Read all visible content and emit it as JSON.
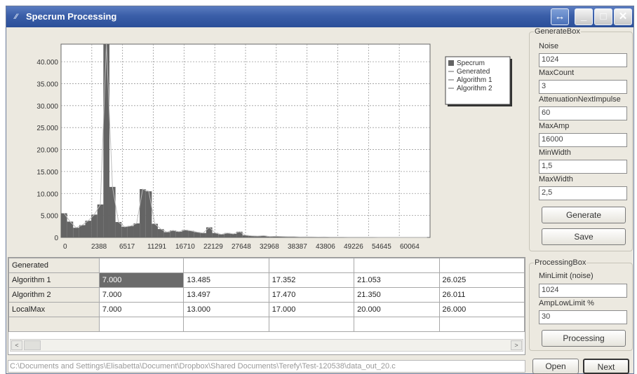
{
  "window": {
    "title": "Specrum Processing",
    "app_icon": "app-icon"
  },
  "title_buttons": [
    {
      "icon": "restore-arrows-icon",
      "glyph": "↔"
    },
    {
      "icon": "minimize-icon",
      "glyph": "_"
    },
    {
      "icon": "maximize-icon",
      "glyph": "□"
    },
    {
      "icon": "close-icon",
      "glyph": "✕"
    }
  ],
  "chart_data": {
    "type": "bar",
    "x_tick_labels": [
      "0",
      "2388",
      "6517",
      "11291",
      "16710",
      "22129",
      "27648",
      "32968",
      "38387",
      "43806",
      "49226",
      "54645",
      "60064"
    ],
    "y_ticks": [
      0,
      5000,
      10000,
      15000,
      20000,
      25000,
      30000,
      35000,
      40000
    ],
    "y_tick_labels": [
      "0",
      "5.000",
      "10.000",
      "15.000",
      "20.000",
      "25.000",
      "30.000",
      "35.000",
      "40.000"
    ],
    "ylim": [
      0,
      44000
    ],
    "grid": true,
    "legend_position": "top-right",
    "legend": [
      "Specrum",
      "Generated",
      "Algorithm 1",
      "Algorithm 2"
    ],
    "series": [
      {
        "name": "Specrum",
        "values": [
          5500,
          3600,
          2200,
          2800,
          3800,
          5200,
          7500,
          44000,
          11500,
          3500,
          2400,
          2600,
          3200,
          11000,
          10500,
          3100,
          1900,
          1200,
          1600,
          1300,
          1700,
          1500,
          1200,
          1000,
          2300,
          1000,
          700,
          1000,
          800,
          1300,
          500,
          350,
          300,
          400,
          200,
          250,
          200,
          150,
          150,
          100,
          120,
          100,
          80,
          100,
          60,
          60,
          50,
          40,
          40,
          30,
          30,
          30,
          20,
          20,
          20,
          20,
          10,
          10,
          10,
          10,
          10
        ]
      }
    ]
  },
  "grid": {
    "rows": [
      {
        "label": "Generated",
        "cells": [
          "",
          "",
          "",
          "",
          ""
        ]
      },
      {
        "label": "Algorithm 1",
        "cells": [
          "7.000",
          "13.485",
          "17.352",
          "21.053",
          "26.025"
        ]
      },
      {
        "label": "Algorithm 2",
        "cells": [
          "7.000",
          "13.497",
          "17.470",
          "21.350",
          "26.011"
        ]
      },
      {
        "label": "LocalMax",
        "cells": [
          "7.000",
          "13.000",
          "17.000",
          "20.000",
          "26.000"
        ]
      },
      {
        "label": "",
        "cells": [
          "",
          "",
          "",
          "",
          ""
        ]
      }
    ],
    "selected_cell": {
      "row": 1,
      "col": 0
    },
    "scroll_left_glyph": "<",
    "scroll_right_glyph": ">"
  },
  "generate_box": {
    "legend": "GenerateBox",
    "fields": [
      {
        "label": "Noise",
        "value": "1024"
      },
      {
        "label": "MaxCount",
        "value": "3"
      },
      {
        "label": "AttenuationNextImpulse",
        "value": "60"
      },
      {
        "label": "MaxAmp",
        "value": "16000"
      },
      {
        "label": "MinWidth",
        "value": "1,5"
      },
      {
        "label": "MaxWidth",
        "value": "2,5"
      }
    ],
    "generate_button": "Generate",
    "save_button": "Save"
  },
  "processing_box": {
    "legend": "ProcessingBox",
    "fields": [
      {
        "label": "MinLimit (noise)",
        "value": "1024"
      },
      {
        "label": "AmpLowLimit %",
        "value": "30"
      }
    ],
    "processing_button": "Processing"
  },
  "status": {
    "path": "C:\\Documents and Settings\\Elisabetta\\Document\\Dropbox\\Shared Documents\\Terefy\\Test-120538\\data_out_20.c"
  },
  "bottom_buttons": {
    "open": "Open",
    "next": "Next"
  },
  "colors": {
    "bar_fill": "#646464",
    "generated_line": "#bbbbbb",
    "titlebar": "#3a5ea8",
    "selected_cell": "#6b6b6b"
  }
}
